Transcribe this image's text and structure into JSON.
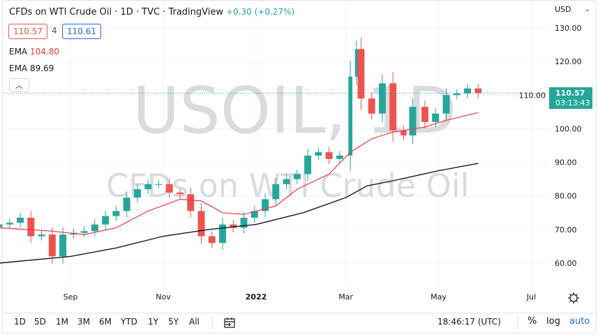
{
  "header": {
    "title": "CFDs on WTI Crude Oil · 1D · TVC · TradingView",
    "change": "+0.30 (+0.27%)",
    "bid": "110.57",
    "spread": "4",
    "ask": "110.61"
  },
  "indicators": [
    {
      "label": "EMA",
      "value": "104.80",
      "color": "#f23645"
    },
    {
      "label": "EMA",
      "value": "89.69",
      "color": "#131722"
    }
  ],
  "watermark": {
    "symbol": "USOIL, 1D",
    "description": "CFDs on WTI Crude Oil"
  },
  "price_axis": {
    "currency": "USD",
    "last_price": "110.57",
    "countdown": "03:13:43"
  },
  "bottom_bar": {
    "ranges": [
      "1D",
      "5D",
      "1M",
      "3M",
      "6M",
      "YTD",
      "1Y",
      "5Y",
      "All"
    ],
    "time": "18:46:17 (UTC)",
    "percent": "%",
    "log": "log",
    "auto": "auto"
  },
  "colors": {
    "up": "#26a69a",
    "down": "#ef5350",
    "ema_fast": "#f23645",
    "ema_slow": "#131722",
    "accent": "#2962ff"
  },
  "chart_data": {
    "type": "candlestick",
    "ylim": [
      55,
      132
    ],
    "y_ticks": [
      "60.00",
      "70.00",
      "80.00",
      "90.00",
      "100.00",
      "110.00",
      "120.00",
      "130.00"
    ],
    "x_ticks": [
      {
        "label": "Sep",
        "date": "2021-09-01"
      },
      {
        "label": "Nov",
        "date": "2021-11-01"
      },
      {
        "label": "2022",
        "date": "2022-01-01"
      },
      {
        "label": "Mar",
        "date": "2022-03-01"
      },
      {
        "label": "May",
        "date": "2022-05-01"
      },
      {
        "label": "Jul",
        "date": "2022-07-01"
      }
    ],
    "closes": [
      [
        "2021-07-16",
        71.5
      ],
      [
        "2021-07-23",
        72
      ],
      [
        "2021-07-30",
        73.5
      ],
      [
        "2021-08-06",
        68
      ],
      [
        "2021-08-13",
        68.5
      ],
      [
        "2021-08-20",
        62
      ],
      [
        "2021-08-27",
        68.5
      ],
      [
        "2021-09-03",
        69
      ],
      [
        "2021-09-10",
        69.5
      ],
      [
        "2021-09-17",
        71.5
      ],
      [
        "2021-09-24",
        74
      ],
      [
        "2021-10-01",
        75.5
      ],
      [
        "2021-10-08",
        79.5
      ],
      [
        "2021-10-15",
        82
      ],
      [
        "2021-10-22",
        83.5
      ],
      [
        "2021-10-29",
        83.5
      ],
      [
        "2021-11-05",
        81
      ],
      [
        "2021-11-12",
        80.5
      ],
      [
        "2021-11-19",
        75.5
      ],
      [
        "2021-11-26",
        68
      ],
      [
        "2021-12-03",
        66
      ],
      [
        "2021-12-10",
        71.5
      ],
      [
        "2021-12-17",
        70.5
      ],
      [
        "2021-12-24",
        73.5
      ],
      [
        "2021-12-31",
        75.5
      ],
      [
        "2022-01-07",
        79
      ],
      [
        "2022-01-14",
        83.5
      ],
      [
        "2022-01-21",
        85
      ],
      [
        "2022-01-28",
        86.5
      ],
      [
        "2022-02-04",
        92
      ],
      [
        "2022-02-11",
        93
      ],
      [
        "2022-02-18",
        91
      ],
      [
        "2022-02-25",
        92
      ],
      [
        "2022-03-04",
        115.5
      ],
      [
        "2022-03-08",
        123.7
      ],
      [
        "2022-03-11",
        109
      ],
      [
        "2022-03-18",
        104.5
      ],
      [
        "2022-03-25",
        113.5
      ],
      [
        "2022-04-01",
        99.5
      ],
      [
        "2022-04-08",
        98
      ],
      [
        "2022-04-14",
        106.5
      ],
      [
        "2022-04-22",
        102
      ],
      [
        "2022-04-29",
        104.5
      ],
      [
        "2022-05-06",
        110
      ],
      [
        "2022-05-13",
        110.5
      ],
      [
        "2022-05-20",
        112
      ],
      [
        "2022-05-27",
        110.57
      ]
    ],
    "ema_fast": [
      [
        "2021-07-16",
        70.5
      ],
      [
        "2021-08-20",
        69.5
      ],
      [
        "2021-09-10",
        68.5
      ],
      [
        "2021-10-01",
        70.5
      ],
      [
        "2021-10-22",
        75.5
      ],
      [
        "2021-11-12",
        79
      ],
      [
        "2021-11-26",
        78.5
      ],
      [
        "2021-12-10",
        75
      ],
      [
        "2021-12-24",
        74.5
      ],
      [
        "2022-01-14",
        77
      ],
      [
        "2022-01-28",
        82
      ],
      [
        "2022-02-18",
        86.5
      ],
      [
        "2022-03-04",
        93
      ],
      [
        "2022-03-18",
        97
      ],
      [
        "2022-04-01",
        99
      ],
      [
        "2022-04-22",
        100.5
      ],
      [
        "2022-05-06",
        102.5
      ],
      [
        "2022-05-27",
        104.8
      ]
    ],
    "ema_slow": [
      [
        "2021-07-16",
        60
      ],
      [
        "2021-09-01",
        62
      ],
      [
        "2021-10-01",
        64.5
      ],
      [
        "2021-11-01",
        68
      ],
      [
        "2021-12-01",
        70
      ],
      [
        "2022-01-01",
        71.5
      ],
      [
        "2022-02-01",
        75
      ],
      [
        "2022-03-01",
        79.5
      ],
      [
        "2022-03-15",
        83
      ],
      [
        "2022-04-01",
        84.5
      ],
      [
        "2022-05-01",
        87.5
      ],
      [
        "2022-05-27",
        89.69
      ]
    ]
  }
}
